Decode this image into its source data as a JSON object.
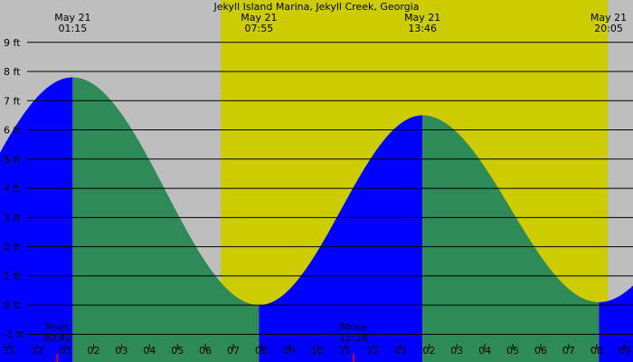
{
  "chart_data": {
    "type": "area",
    "title": "Jekyll Island Marina, Jekyll Creek, Georgia",
    "y_unit": "ft",
    "ylim": [
      -1.95,
      10.45
    ],
    "y_ticks": [
      {
        "value": 9,
        "label": "9 ft"
      },
      {
        "value": 8,
        "label": "8 ft"
      },
      {
        "value": 7,
        "label": "7 ft"
      },
      {
        "value": 6,
        "label": "6 ft"
      },
      {
        "value": 5,
        "label": "5 ft"
      },
      {
        "value": 4,
        "label": "4 ft"
      },
      {
        "value": 3,
        "label": "3 ft"
      },
      {
        "value": 2,
        "label": "2 ft"
      },
      {
        "value": 1,
        "label": "1 ft"
      },
      {
        "value": 0,
        "label": "0 ft"
      },
      {
        "value": -1,
        "label": "-1 ft"
      }
    ],
    "xlim_hours": [
      -1.35,
      21.3
    ],
    "x_ticks": [
      {
        "hour": -1,
        "label": "11"
      },
      {
        "hour": 0,
        "label": "12"
      },
      {
        "hour": 1,
        "label": "01"
      },
      {
        "hour": 2,
        "label": "02"
      },
      {
        "hour": 3,
        "label": "03"
      },
      {
        "hour": 4,
        "label": "04"
      },
      {
        "hour": 5,
        "label": "05"
      },
      {
        "hour": 6,
        "label": "06"
      },
      {
        "hour": 7,
        "label": "07"
      },
      {
        "hour": 8,
        "label": "08"
      },
      {
        "hour": 9,
        "label": "09"
      },
      {
        "hour": 10,
        "label": "10"
      },
      {
        "hour": 11,
        "label": "11"
      },
      {
        "hour": 12,
        "label": "12"
      },
      {
        "hour": 13,
        "label": "01"
      },
      {
        "hour": 14,
        "label": "02"
      },
      {
        "hour": 15,
        "label": "03"
      },
      {
        "hour": 16,
        "label": "04"
      },
      {
        "hour": 17,
        "label": "05"
      },
      {
        "hour": 18,
        "label": "06"
      },
      {
        "hour": 19,
        "label": "07"
      },
      {
        "hour": 20,
        "label": "08"
      },
      {
        "hour": 21,
        "label": "09"
      }
    ],
    "daylight_hours": [
      6.55,
      20.4
    ],
    "tide_events": [
      {
        "type": "high",
        "date": "May 21",
        "time": "01:15",
        "hour": 1.25,
        "height": 7.8
      },
      {
        "type": "low",
        "date": "May 21",
        "time": "07:55",
        "hour": 7.917,
        "height": 0.0
      },
      {
        "type": "high",
        "date": "May 21",
        "time": "13:46",
        "hour": 13.767,
        "height": 6.5
      },
      {
        "type": "low",
        "date": "May 21",
        "time": "20:05",
        "hour": 20.083,
        "height": 0.1
      }
    ],
    "moon_events": [
      {
        "label": "Mset",
        "time": "00:42",
        "hour": 0.7
      },
      {
        "label": "Mrise",
        "time": "11:18",
        "hour": 11.3
      }
    ],
    "colors": {
      "background": "#bebebe",
      "daylight": "#cccc00",
      "rising": "#0000ff",
      "falling": "#2e8b57",
      "grid": "#000000",
      "moon_marker": "#ff0000"
    }
  }
}
